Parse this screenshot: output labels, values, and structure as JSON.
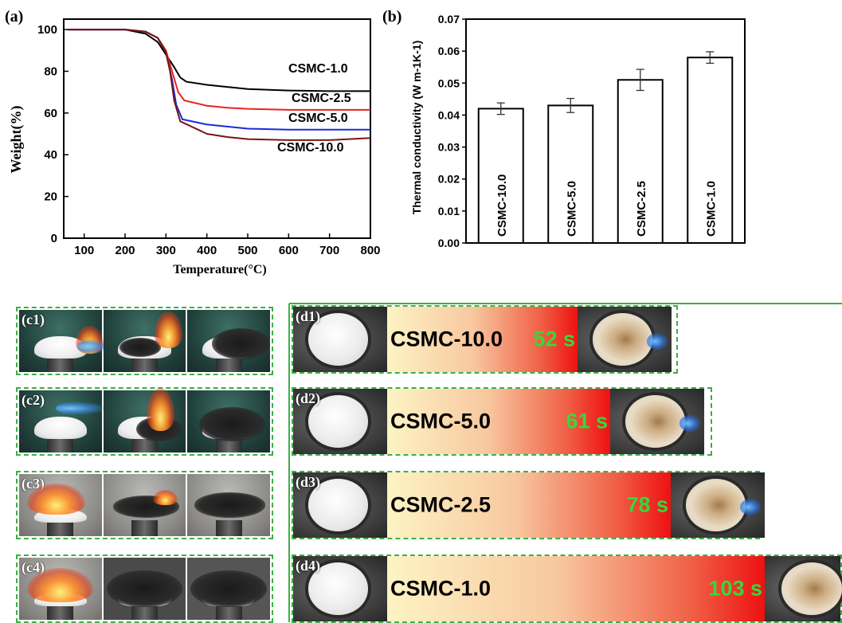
{
  "chart_data": [
    {
      "type": "line",
      "panel_label": "(a)",
      "title": "",
      "xlabel": "Temperature(°C)",
      "ylabel": "Weight(%)",
      "xlim": [
        50,
        800
      ],
      "ylim": [
        0,
        105
      ],
      "xticks": [
        100,
        200,
        300,
        400,
        500,
        600,
        700,
        800
      ],
      "yticks": [
        0,
        20,
        40,
        60,
        80,
        100
      ],
      "grid": false,
      "legend": "inline labels right",
      "series": [
        {
          "name": "CSMC-1.0",
          "color": "#000000",
          "x": [
            60,
            150,
            200,
            250,
            280,
            300,
            320,
            335,
            350,
            400,
            450,
            500,
            600,
            700,
            800
          ],
          "y": [
            100,
            100,
            100,
            98,
            94,
            88,
            82,
            77,
            75,
            73.5,
            72.5,
            71.5,
            70.8,
            70.5,
            70.5
          ]
        },
        {
          "name": "CSMC-2.5",
          "color": "#e8231f",
          "x": [
            60,
            150,
            200,
            250,
            280,
            300,
            315,
            330,
            345,
            400,
            450,
            500,
            600,
            700,
            800
          ],
          "y": [
            100,
            100,
            100,
            99,
            96,
            90,
            80,
            70,
            66,
            63.5,
            62.5,
            62,
            61.5,
            61.5,
            61.5
          ]
        },
        {
          "name": "CSMC-5.0",
          "color": "#1a2bd6",
          "x": [
            60,
            150,
            200,
            250,
            280,
            300,
            315,
            325,
            340,
            400,
            450,
            500,
            600,
            700,
            800
          ],
          "y": [
            100,
            100,
            100,
            99,
            96,
            89,
            76,
            64,
            57,
            54.5,
            53.5,
            52.5,
            52,
            52,
            52
          ]
        },
        {
          "name": "CSMC-10.0",
          "color": "#7a1414",
          "x": [
            60,
            150,
            200,
            250,
            280,
            300,
            310,
            320,
            335,
            400,
            450,
            500,
            600,
            700,
            800
          ],
          "y": [
            100,
            100,
            100,
            99,
            96,
            89,
            80,
            66,
            56,
            50,
            48.5,
            47.5,
            47,
            47,
            48
          ]
        }
      ]
    },
    {
      "type": "bar",
      "panel_label": "(b)",
      "title": "",
      "xlabel": "",
      "ylabel": "Thermal conductivity (W m-1K-1)",
      "ylim": [
        0,
        0.07
      ],
      "yticks": [
        "0.00",
        "0.01",
        "0.02",
        "0.03",
        "0.04",
        "0.05",
        "0.06",
        "0.07"
      ],
      "categories": [
        "CSMC-10.0",
        "CSMC-5.0",
        "CSMC-2.5",
        "CSMC-1.0"
      ],
      "values": [
        0.042,
        0.043,
        0.051,
        0.058
      ],
      "errors": [
        0.0018,
        0.0022,
        0.0033,
        0.0018
      ],
      "grid": false
    },
    {
      "type": "bar",
      "panel_labels": [
        "(d1)",
        "(d2)",
        "(d3)",
        "(d4)"
      ],
      "categories": [
        "CSMC-10.0",
        "CSMC-5.0",
        "CSMC-2.5",
        "CSMC-1.0"
      ],
      "values": [
        52,
        61,
        78,
        103
      ],
      "value_labels": [
        "52 s",
        "61 s",
        "78 s",
        "103 s"
      ],
      "unit": "s"
    }
  ],
  "photos": {
    "panel_labels": [
      "(c1)",
      "(c2)",
      "(c3)",
      "(c4)"
    ]
  },
  "colors": {
    "frame": "#3cb043",
    "time_text": "#39d63a"
  }
}
